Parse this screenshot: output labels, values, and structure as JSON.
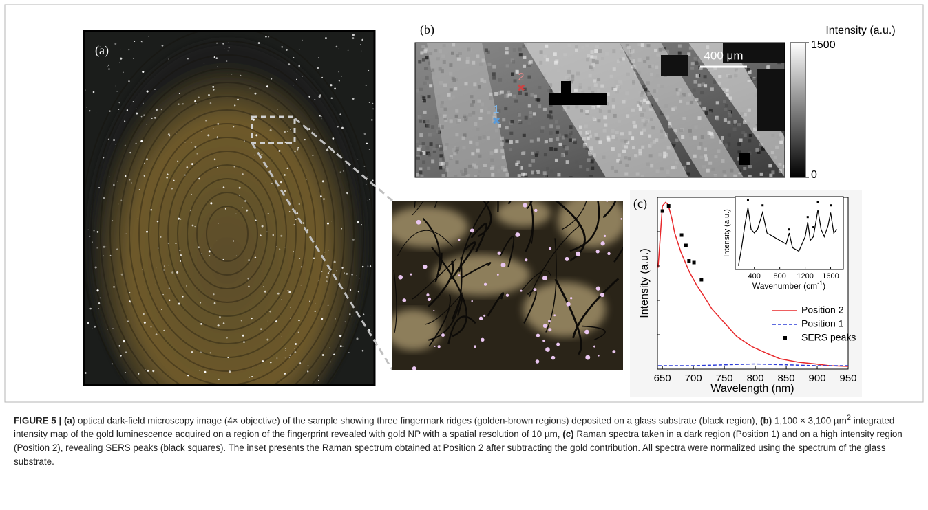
{
  "panels": {
    "a": {
      "label": "(a)"
    },
    "b": {
      "label": "(b)",
      "colorbar_title": "Intensity (a.u.)",
      "colorbar_lim": [
        0,
        1500
      ],
      "colorbar_ticks": [
        0,
        1500
      ],
      "scale_bar": "400 μm",
      "markers": [
        "1",
        "2"
      ]
    }
  },
  "chart_data": {
    "type": "line",
    "label": "(c)",
    "xlabel": "Wavelength (nm)",
    "ylabel": "Intensity (a.u.)",
    "xlim": [
      642,
      950
    ],
    "ylim": [
      0,
      1
    ],
    "xticks": [
      650,
      700,
      750,
      800,
      850,
      900,
      950
    ],
    "series": [
      {
        "name": "Position 2",
        "color": "#e8282b",
        "x": [
          643,
          650,
          655,
          659,
          665,
          670,
          680,
          693,
          705,
          716,
          730,
          750,
          770,
          795,
          820,
          840,
          870,
          897,
          920,
          950
        ],
        "values": [
          0.59,
          0.95,
          0.97,
          0.96,
          0.88,
          0.79,
          0.68,
          0.57,
          0.49,
          0.43,
          0.35,
          0.27,
          0.19,
          0.13,
          0.09,
          0.06,
          0.04,
          0.03,
          0.02,
          0.016
        ]
      },
      {
        "name": "Position 1",
        "color": "#2a3bd6",
        "dash": true,
        "x": [
          643,
          700,
          750,
          800,
          850,
          900,
          950
        ],
        "values": [
          0.02,
          0.02,
          0.025,
          0.03,
          0.025,
          0.02,
          0.02
        ]
      },
      {
        "name": "SERS peaks",
        "color": "#000000",
        "type": "scatter",
        "x": [
          650,
          660,
          681,
          688,
          693,
          701,
          713
        ],
        "values": [
          0.92,
          0.95,
          0.78,
          0.72,
          0.63,
          0.62,
          0.52
        ]
      }
    ],
    "inset": {
      "type": "line",
      "xlabel": [
        "Wavenumber (cm",
        "-1",
        ")"
      ],
      "ylabel": "Intensity (a.u.)",
      "xlim": [
        100,
        1800
      ],
      "ylim": [
        0,
        1
      ],
      "xticks": [
        400,
        800,
        1200,
        1600
      ],
      "series": [
        {
          "color": "#000000",
          "x": [
            150,
            200,
            250,
            300,
            350,
            400,
            450,
            530,
            600,
            700,
            800,
            900,
            950,
            1000,
            1100,
            1200,
            1240,
            1280,
            1330,
            1400,
            1450,
            1500,
            1560,
            1600,
            1650,
            1700
          ],
          "values": [
            0.05,
            0.3,
            0.6,
            0.85,
            0.55,
            0.5,
            0.55,
            0.78,
            0.5,
            0.45,
            0.4,
            0.35,
            0.5,
            0.3,
            0.25,
            0.45,
            0.65,
            0.4,
            0.45,
            0.82,
            0.55,
            0.45,
            0.6,
            0.78,
            0.5,
            0.55
          ]
        },
        {
          "color": "#000000",
          "type": "scatter",
          "x": [
            300,
            530,
            950,
            1240,
            1330,
            1400,
            1600
          ],
          "values": [
            0.95,
            0.88,
            0.55,
            0.72,
            0.58,
            0.92,
            0.88
          ]
        }
      ]
    }
  },
  "caption": [
    "FIGURE 5 | ",
    "(a)",
    " optical dark-field microscopy image (4× objective) of the sample showing three fingermark ridges (golden-brown regions) deposited on a glass substrate (black region), ",
    "(b)",
    " 1,100 × 3,100 µm",
    "2",
    " integrated intensity map of the gold luminescence acquired on a region of the fingerprint revealed with gold NP with a spatial resolution of 10 µm, ",
    "(c)",
    " Raman spectra taken in a dark region (Position 1) and on a high intensity region (Position 2), revealing SERS peaks (black squares). The inset presents the Raman spectrum obtained at Position 2 after subtracting the gold contribution. All spectra were normalized using the spectrum of the glass substrate."
  ]
}
